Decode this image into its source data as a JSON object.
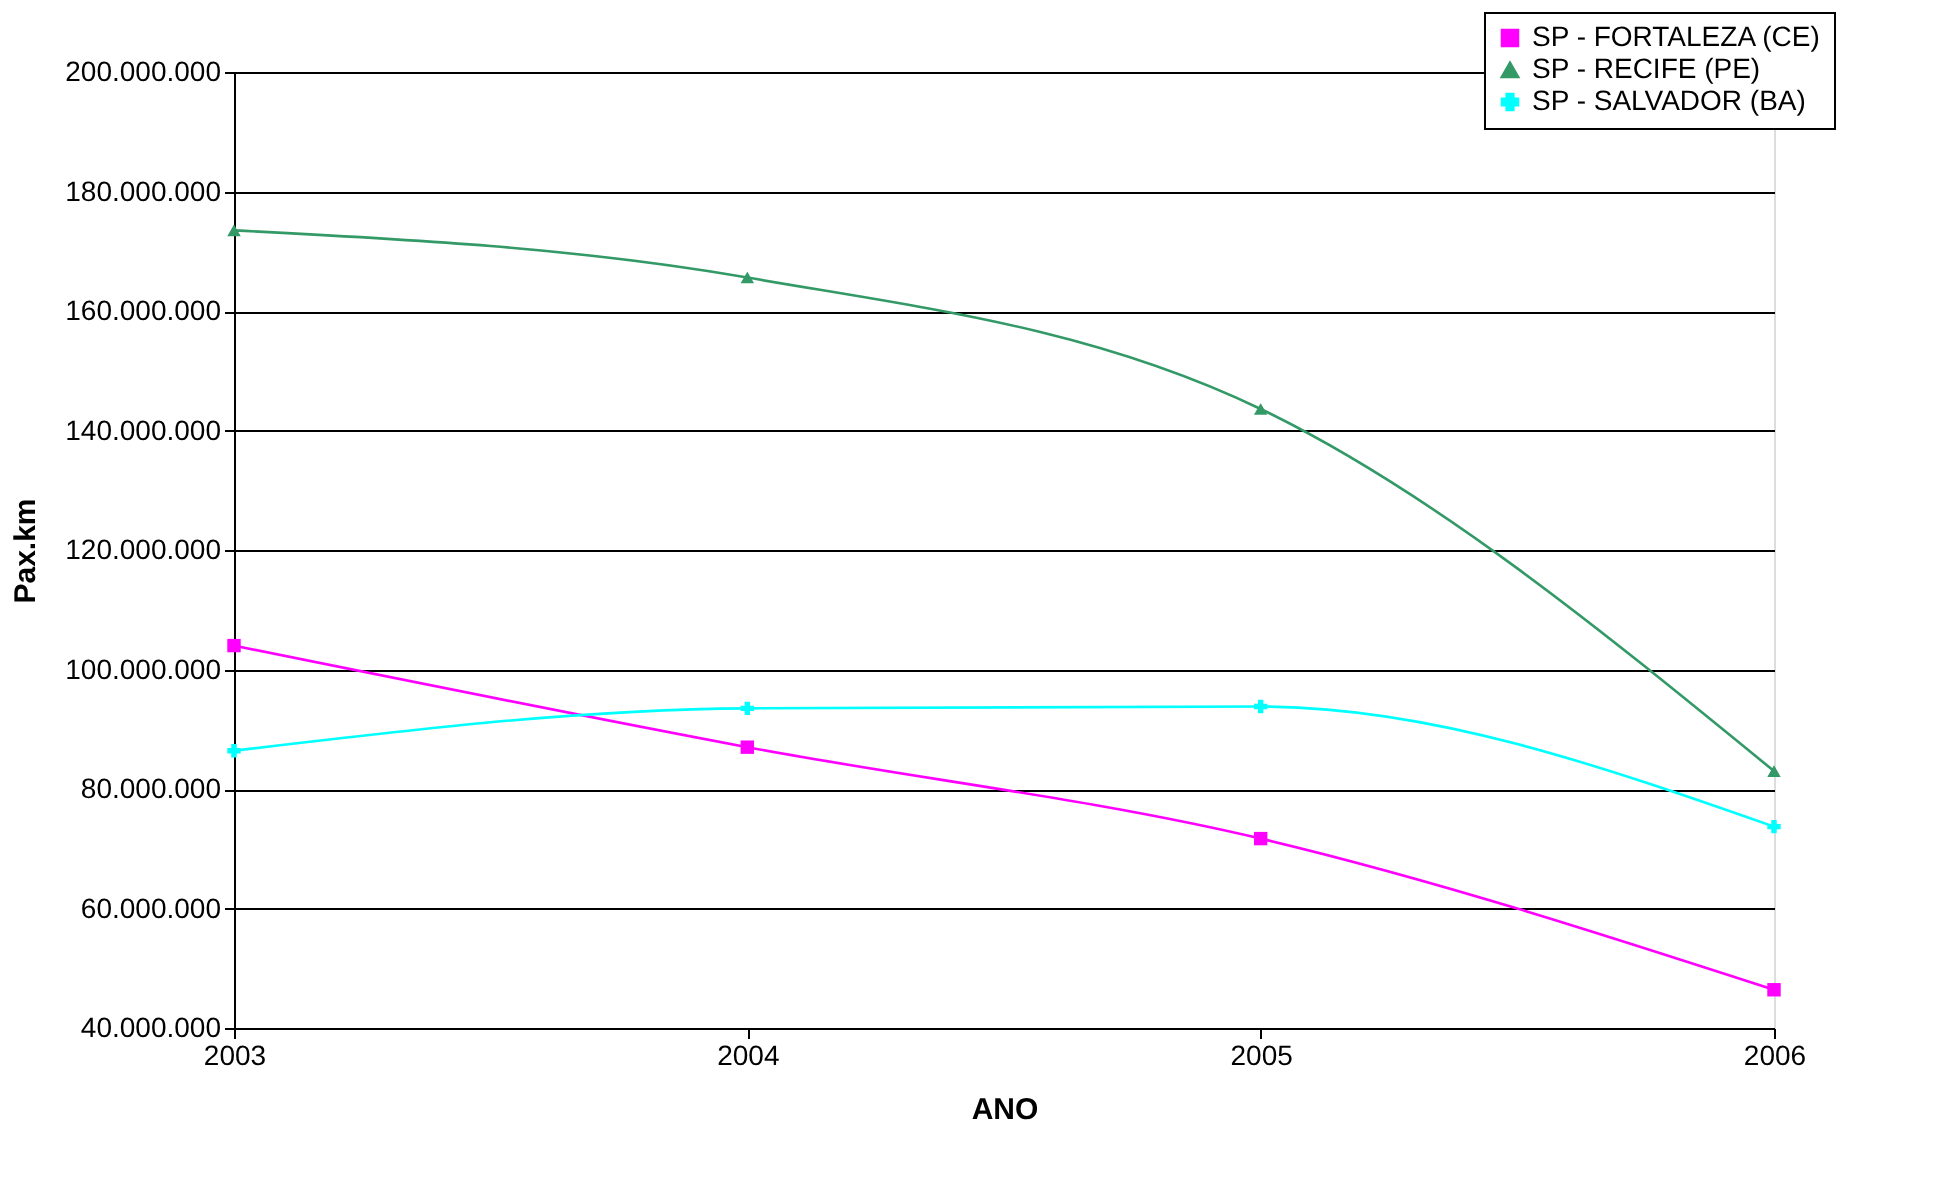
{
  "chart_data": {
    "type": "line",
    "xlabel": "ANO",
    "ylabel": "Pax.km",
    "x": [
      2003,
      2004,
      2005,
      2006
    ],
    "series": [
      {
        "name": "SP - FORTALEZA (CE)",
        "color": "#ff00ff",
        "marker": "square",
        "values": [
          104000000,
          87000000,
          71700000,
          46400000
        ]
      },
      {
        "name": "SP - RECIFE (PE)",
        "color": "#339966",
        "marker": "triangle",
        "values": [
          173500000,
          165600000,
          143600000,
          83000000
        ]
      },
      {
        "name": "SP - SALVADOR (BA)",
        "color": "#00ffff",
        "marker": "cross",
        "values": [
          86400000,
          93500000,
          93800000,
          73700000
        ]
      }
    ],
    "xlim": [
      2003,
      2006
    ],
    "xticks": [
      2003,
      2004,
      2005,
      2006
    ],
    "ylim": [
      40000000,
      200000000
    ],
    "yticks": [
      {
        "value": 40000000,
        "label": "40.000.000"
      },
      {
        "value": 60000000,
        "label": "60.000.000"
      },
      {
        "value": 80000000,
        "label": "80.000.000"
      },
      {
        "value": 100000000,
        "label": "100.000.000"
      },
      {
        "value": 120000000,
        "label": "120.000.000"
      },
      {
        "value": 140000000,
        "label": "140.000.000"
      },
      {
        "value": 160000000,
        "label": "160.000.000"
      },
      {
        "value": 180000000,
        "label": "180.000.000"
      },
      {
        "value": 200000000,
        "label": "200.000.000"
      }
    ],
    "grid": "y",
    "legend": "top right",
    "line_style": "solid"
  }
}
